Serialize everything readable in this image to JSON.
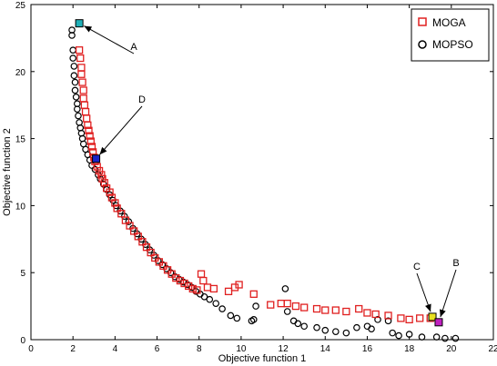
{
  "chart_data": {
    "type": "scatter",
    "title": "",
    "xlabel": "Objective function 1",
    "ylabel": "Objective function 2",
    "xlim": [
      0,
      22
    ],
    "ylim": [
      0,
      25
    ],
    "xticks": [
      0,
      2,
      4,
      6,
      8,
      10,
      12,
      14,
      16,
      18,
      20,
      22
    ],
    "yticks": [
      0,
      5,
      10,
      15,
      20,
      25
    ],
    "grid": false,
    "legend_position": "top-right",
    "series": [
      {
        "name": "MOGA",
        "marker": "square",
        "color": "#e02020",
        "points": [
          [
            2.3,
            23.6
          ],
          [
            2.3,
            21.6
          ],
          [
            2.35,
            21.0
          ],
          [
            2.4,
            20.3
          ],
          [
            2.4,
            19.8
          ],
          [
            2.45,
            19.2
          ],
          [
            2.5,
            18.6
          ],
          [
            2.5,
            18.0
          ],
          [
            2.55,
            17.5
          ],
          [
            2.6,
            17.0
          ],
          [
            2.65,
            16.5
          ],
          [
            2.7,
            16.0
          ],
          [
            2.75,
            15.6
          ],
          [
            2.8,
            15.2
          ],
          [
            2.85,
            14.8
          ],
          [
            2.9,
            14.4
          ],
          [
            2.95,
            14.0
          ],
          [
            3.0,
            13.6
          ],
          [
            3.05,
            13.3
          ],
          [
            3.15,
            12.9
          ],
          [
            3.25,
            12.6
          ],
          [
            3.35,
            12.3
          ],
          [
            3.4,
            12.0
          ],
          [
            3.5,
            11.7
          ],
          [
            3.6,
            11.3
          ],
          [
            3.75,
            11.0
          ],
          [
            3.85,
            10.6
          ],
          [
            4.0,
            10.2
          ],
          [
            4.1,
            9.8
          ],
          [
            4.3,
            9.4
          ],
          [
            4.5,
            8.9
          ],
          [
            4.7,
            8.5
          ],
          [
            4.9,
            8.1
          ],
          [
            5.1,
            7.7
          ],
          [
            5.3,
            7.3
          ],
          [
            5.5,
            6.9
          ],
          [
            5.7,
            6.5
          ],
          [
            5.9,
            6.1
          ],
          [
            6.1,
            5.8
          ],
          [
            6.3,
            5.5
          ],
          [
            6.5,
            5.2
          ],
          [
            6.7,
            4.9
          ],
          [
            6.9,
            4.6
          ],
          [
            7.1,
            4.4
          ],
          [
            7.3,
            4.2
          ],
          [
            7.5,
            4.0
          ],
          [
            7.7,
            3.8
          ],
          [
            7.9,
            3.7
          ],
          [
            8.1,
            4.9
          ],
          [
            8.2,
            4.4
          ],
          [
            8.4,
            3.9
          ],
          [
            8.7,
            3.8
          ],
          [
            9.4,
            3.6
          ],
          [
            9.7,
            3.9
          ],
          [
            9.9,
            4.1
          ],
          [
            10.6,
            3.4
          ],
          [
            11.4,
            2.6
          ],
          [
            11.9,
            2.7
          ],
          [
            12.2,
            2.7
          ],
          [
            12.6,
            2.5
          ],
          [
            13.0,
            2.4
          ],
          [
            13.6,
            2.3
          ],
          [
            14.0,
            2.2
          ],
          [
            14.5,
            2.2
          ],
          [
            15.0,
            2.1
          ],
          [
            15.6,
            2.3
          ],
          [
            16.0,
            2.0
          ],
          [
            16.4,
            1.9
          ],
          [
            17.0,
            1.8
          ],
          [
            17.6,
            1.6
          ],
          [
            18.0,
            1.5
          ],
          [
            18.5,
            1.6
          ],
          [
            19.0,
            1.6
          ]
        ]
      },
      {
        "name": "MOPSO",
        "marker": "circle",
        "color": "#000000",
        "points": [
          [
            1.95,
            23.1
          ],
          [
            1.95,
            22.7
          ],
          [
            2.0,
            21.6
          ],
          [
            2.0,
            21.0
          ],
          [
            2.05,
            20.4
          ],
          [
            2.05,
            19.7
          ],
          [
            2.1,
            19.2
          ],
          [
            2.1,
            18.6
          ],
          [
            2.15,
            18.1
          ],
          [
            2.2,
            17.6
          ],
          [
            2.2,
            17.2
          ],
          [
            2.25,
            16.7
          ],
          [
            2.3,
            16.2
          ],
          [
            2.35,
            15.8
          ],
          [
            2.4,
            15.4
          ],
          [
            2.45,
            15.0
          ],
          [
            2.5,
            14.6
          ],
          [
            2.6,
            14.2
          ],
          [
            2.7,
            13.8
          ],
          [
            2.8,
            13.4
          ],
          [
            2.9,
            13.0
          ],
          [
            3.05,
            12.7
          ],
          [
            3.2,
            12.3
          ],
          [
            3.3,
            12.0
          ],
          [
            3.45,
            11.6
          ],
          [
            3.6,
            11.2
          ],
          [
            3.75,
            10.8
          ],
          [
            3.9,
            10.4
          ],
          [
            4.05,
            10.0
          ],
          [
            4.25,
            9.6
          ],
          [
            4.45,
            9.2
          ],
          [
            4.65,
            8.8
          ],
          [
            4.85,
            8.3
          ],
          [
            5.05,
            7.9
          ],
          [
            5.25,
            7.5
          ],
          [
            5.45,
            7.1
          ],
          [
            5.65,
            6.7
          ],
          [
            5.85,
            6.3
          ],
          [
            6.05,
            5.9
          ],
          [
            6.25,
            5.6
          ],
          [
            6.45,
            5.3
          ],
          [
            6.65,
            5.0
          ],
          [
            6.85,
            4.7
          ],
          [
            7.05,
            4.5
          ],
          [
            7.25,
            4.3
          ],
          [
            7.45,
            4.1
          ],
          [
            7.65,
            3.9
          ],
          [
            7.85,
            3.6
          ],
          [
            8.05,
            3.4
          ],
          [
            8.25,
            3.2
          ],
          [
            8.5,
            3.0
          ],
          [
            8.8,
            2.7
          ],
          [
            9.1,
            2.3
          ],
          [
            9.5,
            1.8
          ],
          [
            9.8,
            1.6
          ],
          [
            10.5,
            1.4
          ],
          [
            10.6,
            1.5
          ],
          [
            10.7,
            2.5
          ],
          [
            12.1,
            3.8
          ],
          [
            12.2,
            2.1
          ],
          [
            12.5,
            1.4
          ],
          [
            12.7,
            1.2
          ],
          [
            13.0,
            1.0
          ],
          [
            13.6,
            0.9
          ],
          [
            14.0,
            0.7
          ],
          [
            14.5,
            0.6
          ],
          [
            15.0,
            0.5
          ],
          [
            15.5,
            0.9
          ],
          [
            16.0,
            1.0
          ],
          [
            16.2,
            0.8
          ],
          [
            16.5,
            1.5
          ],
          [
            17.0,
            1.4
          ],
          [
            17.2,
            0.5
          ],
          [
            17.5,
            0.3
          ],
          [
            18.0,
            0.4
          ],
          [
            18.6,
            0.2
          ],
          [
            19.3,
            0.2
          ],
          [
            19.7,
            0.1
          ],
          [
            20.2,
            0.1
          ]
        ]
      }
    ],
    "highlights": [
      {
        "label": "A",
        "x": 2.3,
        "y": 23.6,
        "color": "#20b0b8"
      },
      {
        "label": "D",
        "x": 3.1,
        "y": 13.5,
        "color": "#1a24c8"
      },
      {
        "label": "C",
        "x": 19.1,
        "y": 1.7,
        "color": "#e8e020"
      },
      {
        "label": "B",
        "x": 19.4,
        "y": 1.3,
        "color": "#c020c0"
      }
    ]
  }
}
